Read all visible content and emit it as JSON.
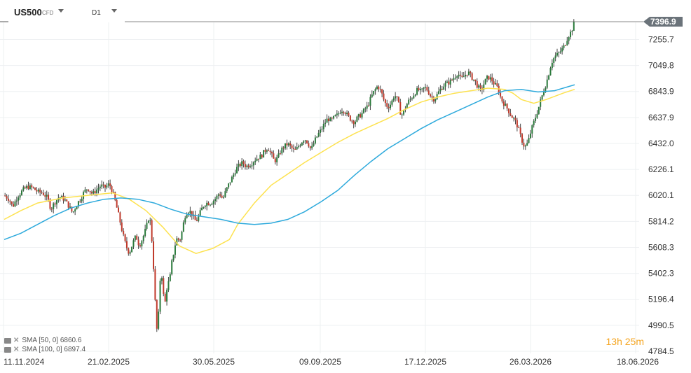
{
  "toolbar": {
    "symbol": "US500",
    "symbol_type": "CFD",
    "interval": "D1"
  },
  "legend": [
    {
      "label": "SMA [50, 0] 6860.6",
      "color": "#fde24f"
    },
    {
      "label": "SMA [100, 0] 6897.4",
      "color": "#2eaadc"
    }
  ],
  "countdown": {
    "hours": "13",
    "h_unit": "h",
    "minutes": "25",
    "m_unit": "m"
  },
  "chart_data": {
    "type": "candlestick",
    "y_axis": {
      "min": 4784.5,
      "max": 7396.9,
      "ticks": [
        "7255.7",
        "7049.8",
        "6843.9",
        "6637.9",
        "6432.0",
        "6226.1",
        "6020.1",
        "5814.2",
        "5608.3",
        "5402.3",
        "5196.4",
        "4990.5",
        "4784.5"
      ]
    },
    "x_axis": {
      "ticks": [
        "11.11.2024",
        "21.02.2025",
        "30.05.2025",
        "09.09.2025",
        "17.12.2025",
        "26.03.2026",
        "18.06.2026"
      ]
    },
    "current_price": 7396.9,
    "close_path": [
      [
        0,
        6020
      ],
      [
        6,
        5990
      ],
      [
        10,
        5930
      ],
      [
        16,
        6010
      ],
      [
        22,
        6060
      ],
      [
        28,
        6090
      ],
      [
        34,
        6080
      ],
      [
        40,
        6050
      ],
      [
        46,
        6040
      ],
      [
        52,
        6000
      ],
      [
        56,
        5910
      ],
      [
        60,
        5960
      ],
      [
        66,
        6010
      ],
      [
        72,
        5990
      ],
      [
        78,
        5930
      ],
      [
        82,
        5880
      ],
      [
        88,
        5960
      ],
      [
        92,
        6000
      ],
      [
        96,
        6050
      ],
      [
        100,
        6080
      ],
      [
        106,
        6030
      ],
      [
        110,
        6060
      ],
      [
        116,
        6100
      ],
      [
        120,
        6080
      ],
      [
        126,
        6110
      ],
      [
        130,
        6050
      ],
      [
        134,
        5950
      ],
      [
        138,
        5840
      ],
      [
        142,
        5720
      ],
      [
        146,
        5620
      ],
      [
        150,
        5560
      ],
      [
        154,
        5640
      ],
      [
        158,
        5700
      ],
      [
        162,
        5620
      ],
      [
        166,
        5680
      ],
      [
        170,
        5760
      ],
      [
        174,
        5860
      ],
      [
        176,
        5770
      ],
      [
        178,
        5560
      ],
      [
        180,
        5340
      ],
      [
        182,
        5020
      ],
      [
        184,
        4900
      ],
      [
        186,
        5260
      ],
      [
        188,
        5440
      ],
      [
        190,
        5320
      ],
      [
        192,
        5140
      ],
      [
        194,
        5210
      ],
      [
        196,
        5360
      ],
      [
        198,
        5300
      ],
      [
        200,
        5460
      ],
      [
        202,
        5520
      ],
      [
        204,
        5600
      ],
      [
        206,
        5660
      ],
      [
        208,
        5690
      ],
      [
        210,
        5650
      ],
      [
        212,
        5700
      ],
      [
        214,
        5760
      ],
      [
        216,
        5840
      ],
      [
        218,
        5880
      ],
      [
        222,
        5900
      ],
      [
        226,
        5860
      ],
      [
        230,
        5810
      ],
      [
        234,
        5870
      ],
      [
        238,
        5930
      ],
      [
        242,
        5960
      ],
      [
        248,
        5960
      ],
      [
        254,
        6000
      ],
      [
        258,
        6040
      ],
      [
        262,
        5990
      ],
      [
        266,
        6060
      ],
      [
        270,
        6120
      ],
      [
        274,
        6170
      ],
      [
        278,
        6230
      ],
      [
        282,
        6260
      ],
      [
        286,
        6280
      ],
      [
        290,
        6250
      ],
      [
        296,
        6270
      ],
      [
        300,
        6300
      ],
      [
        304,
        6320
      ],
      [
        308,
        6330
      ],
      [
        312,
        6370
      ],
      [
        316,
        6400
      ],
      [
        320,
        6350
      ],
      [
        324,
        6290
      ],
      [
        328,
        6320
      ],
      [
        332,
        6380
      ],
      [
        336,
        6410
      ],
      [
        340,
        6430
      ],
      [
        344,
        6400
      ],
      [
        348,
        6370
      ],
      [
        352,
        6400
      ],
      [
        356,
        6440
      ],
      [
        360,
        6470
      ],
      [
        364,
        6440
      ],
      [
        368,
        6380
      ],
      [
        372,
        6450
      ],
      [
        376,
        6500
      ],
      [
        380,
        6540
      ],
      [
        384,
        6590
      ],
      [
        388,
        6630
      ],
      [
        392,
        6610
      ],
      [
        396,
        6640
      ],
      [
        400,
        6660
      ],
      [
        404,
        6700
      ],
      [
        408,
        6690
      ],
      [
        412,
        6650
      ],
      [
        416,
        6620
      ],
      [
        420,
        6600
      ],
      [
        424,
        6640
      ],
      [
        428,
        6660
      ],
      [
        432,
        6700
      ],
      [
        436,
        6730
      ],
      [
        440,
        6800
      ],
      [
        444,
        6850
      ],
      [
        448,
        6890
      ],
      [
        452,
        6840
      ],
      [
        456,
        6760
      ],
      [
        460,
        6720
      ],
      [
        464,
        6750
      ],
      [
        468,
        6820
      ],
      [
        472,
        6770
      ],
      [
        476,
        6650
      ],
      [
        480,
        6700
      ],
      [
        484,
        6760
      ],
      [
        488,
        6790
      ],
      [
        492,
        6830
      ],
      [
        496,
        6860
      ],
      [
        500,
        6840
      ],
      [
        504,
        6880
      ],
      [
        508,
        6850
      ],
      [
        512,
        6800
      ],
      [
        516,
        6780
      ],
      [
        520,
        6830
      ],
      [
        524,
        6870
      ],
      [
        528,
        6900
      ],
      [
        532,
        6910
      ],
      [
        536,
        6930
      ],
      [
        540,
        6960
      ],
      [
        544,
        6990
      ],
      [
        548,
        6940
      ],
      [
        552,
        6970
      ],
      [
        556,
        7000
      ],
      [
        560,
        6960
      ],
      [
        564,
        6930
      ],
      [
        568,
        6880
      ],
      [
        572,
        6850
      ],
      [
        576,
        6920
      ],
      [
        580,
        6960
      ],
      [
        584,
        6940
      ],
      [
        588,
        6900
      ],
      [
        592,
        6870
      ],
      [
        596,
        6780
      ],
      [
        600,
        6740
      ],
      [
        604,
        6700
      ],
      [
        608,
        6650
      ],
      [
        612,
        6620
      ],
      [
        616,
        6560
      ],
      [
        620,
        6470
      ],
      [
        624,
        6400
      ],
      [
        628,
        6440
      ],
      [
        632,
        6540
      ],
      [
        636,
        6620
      ],
      [
        640,
        6700
      ],
      [
        644,
        6790
      ],
      [
        648,
        6870
      ],
      [
        652,
        6960
      ],
      [
        656,
        7070
      ],
      [
        660,
        7120
      ],
      [
        664,
        7140
      ],
      [
        668,
        7170
      ],
      [
        672,
        7210
      ],
      [
        676,
        7280
      ],
      [
        680,
        7320
      ],
      [
        684,
        7396.9
      ]
    ],
    "series": [
      {
        "name": "SMA [50, 0] 6860.6",
        "color": "#fde24f",
        "points": [
          [
            0,
            5830
          ],
          [
            20,
            5900
          ],
          [
            40,
            5960
          ],
          [
            70,
            6000
          ],
          [
            100,
            6020
          ],
          [
            130,
            6040
          ],
          [
            150,
            5990
          ],
          [
            170,
            5900
          ],
          [
            190,
            5770
          ],
          [
            210,
            5620
          ],
          [
            230,
            5560
          ],
          [
            250,
            5600
          ],
          [
            270,
            5670
          ],
          [
            280,
            5790
          ],
          [
            300,
            5960
          ],
          [
            320,
            6100
          ],
          [
            340,
            6190
          ],
          [
            360,
            6280
          ],
          [
            380,
            6360
          ],
          [
            400,
            6440
          ],
          [
            420,
            6510
          ],
          [
            440,
            6570
          ],
          [
            460,
            6630
          ],
          [
            480,
            6700
          ],
          [
            500,
            6760
          ],
          [
            520,
            6800
          ],
          [
            540,
            6830
          ],
          [
            560,
            6850
          ],
          [
            580,
            6870
          ],
          [
            600,
            6860
          ],
          [
            610,
            6830
          ],
          [
            620,
            6780
          ],
          [
            635,
            6750
          ],
          [
            650,
            6780
          ],
          [
            670,
            6830
          ],
          [
            684,
            6860.6
          ]
        ]
      },
      {
        "name": "SMA [100, 0] 6897.4",
        "color": "#2eaadc",
        "points": [
          [
            0,
            5670
          ],
          [
            20,
            5720
          ],
          [
            40,
            5790
          ],
          [
            60,
            5860
          ],
          [
            80,
            5920
          ],
          [
            100,
            5960
          ],
          [
            120,
            5990
          ],
          [
            140,
            6000
          ],
          [
            160,
            5990
          ],
          [
            180,
            5960
          ],
          [
            200,
            5910
          ],
          [
            220,
            5870
          ],
          [
            240,
            5850
          ],
          [
            260,
            5830
          ],
          [
            280,
            5800
          ],
          [
            300,
            5790
          ],
          [
            320,
            5800
          ],
          [
            340,
            5830
          ],
          [
            360,
            5890
          ],
          [
            380,
            5970
          ],
          [
            400,
            6060
          ],
          [
            420,
            6180
          ],
          [
            440,
            6290
          ],
          [
            460,
            6390
          ],
          [
            480,
            6470
          ],
          [
            500,
            6550
          ],
          [
            520,
            6620
          ],
          [
            540,
            6680
          ],
          [
            560,
            6740
          ],
          [
            580,
            6800
          ],
          [
            600,
            6850
          ],
          [
            620,
            6860
          ],
          [
            640,
            6840
          ],
          [
            660,
            6850
          ],
          [
            684,
            6897.4
          ]
        ]
      }
    ],
    "grid": true,
    "legend": "bottom-left"
  }
}
